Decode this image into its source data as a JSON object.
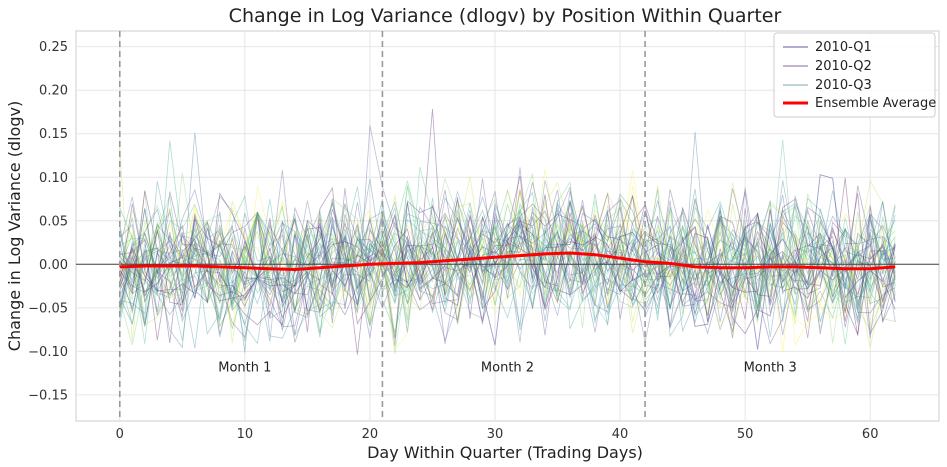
{
  "chart_data": {
    "type": "line",
    "title": "Change in Log Variance (dlogv) by Position Within Quarter",
    "xlabel": "Day Within Quarter (Trading Days)",
    "ylabel": "Change in Log Variance (dlogv)",
    "xlim": [
      -3.5,
      65.5
    ],
    "ylim": [
      -0.18,
      0.268
    ],
    "x_ticks": [
      0,
      10,
      20,
      30,
      40,
      50,
      60
    ],
    "y_ticks": [
      -0.15,
      -0.1,
      -0.05,
      0.0,
      0.05,
      0.1,
      0.15,
      0.2,
      0.25
    ],
    "x_tick_labels": [
      "0",
      "10",
      "20",
      "30",
      "40",
      "50",
      "60"
    ],
    "y_tick_labels": [
      "−0.15",
      "−0.10",
      "−0.05",
      "0.00",
      "0.05",
      "0.10",
      "0.15",
      "0.20",
      "0.25"
    ],
    "grid": true,
    "legend_position": "top-right",
    "month_boundaries": [
      0,
      21,
      42
    ],
    "horizontal_reference": 0,
    "month_labels": [
      {
        "text": "Month 1",
        "x": 10,
        "y": -0.123
      },
      {
        "text": "Month 2",
        "x": 31,
        "y": -0.123
      },
      {
        "text": "Month 3",
        "x": 52,
        "y": -0.123
      }
    ],
    "legend": [
      {
        "name": "2010-Q1",
        "color": "#5b5ea6",
        "style": "thin"
      },
      {
        "name": "2010-Q2",
        "color": "#8a6a9e",
        "style": "thin"
      },
      {
        "name": "2010-Q3",
        "color": "#7fa9b5",
        "style": "thin"
      },
      {
        "name": "Ensemble Average",
        "color": "#ff0000",
        "style": "thick"
      }
    ],
    "series": [
      {
        "name": "2010-Q1",
        "color": "#5b5ea6",
        "seed": 11
      },
      {
        "name": "2010-Q2",
        "color": "#8a6a9e",
        "seed": 23
      },
      {
        "name": "2010-Q3",
        "color": "#7fa9b5",
        "seed": 37
      }
    ],
    "background_series": {
      "count": 46,
      "x_max": 62,
      "colors": [
        "#440154",
        "#482878",
        "#3e4989",
        "#31688e",
        "#26828e",
        "#1f9e89",
        "#35b779",
        "#6ece58",
        "#b5de2b",
        "#fde725"
      ]
    },
    "ensemble_average": {
      "name": "Ensemble Average",
      "color": "#ff0000",
      "x": [
        0,
        2,
        4,
        6,
        8,
        10,
        12,
        14,
        16,
        18,
        20,
        22,
        24,
        26,
        28,
        30,
        32,
        34,
        36,
        38,
        40,
        42,
        44,
        46,
        48,
        50,
        52,
        54,
        56,
        58,
        60,
        62
      ],
      "y": [
        -0.003,
        -0.002,
        -0.002,
        -0.002,
        -0.003,
        -0.004,
        -0.005,
        -0.006,
        -0.004,
        -0.002,
        0.0,
        0.001,
        0.002,
        0.004,
        0.006,
        0.008,
        0.01,
        0.012,
        0.013,
        0.011,
        0.007,
        0.003,
        0.001,
        -0.003,
        -0.004,
        -0.004,
        -0.003,
        -0.003,
        -0.004,
        -0.005,
        -0.005,
        -0.003
      ]
    }
  }
}
